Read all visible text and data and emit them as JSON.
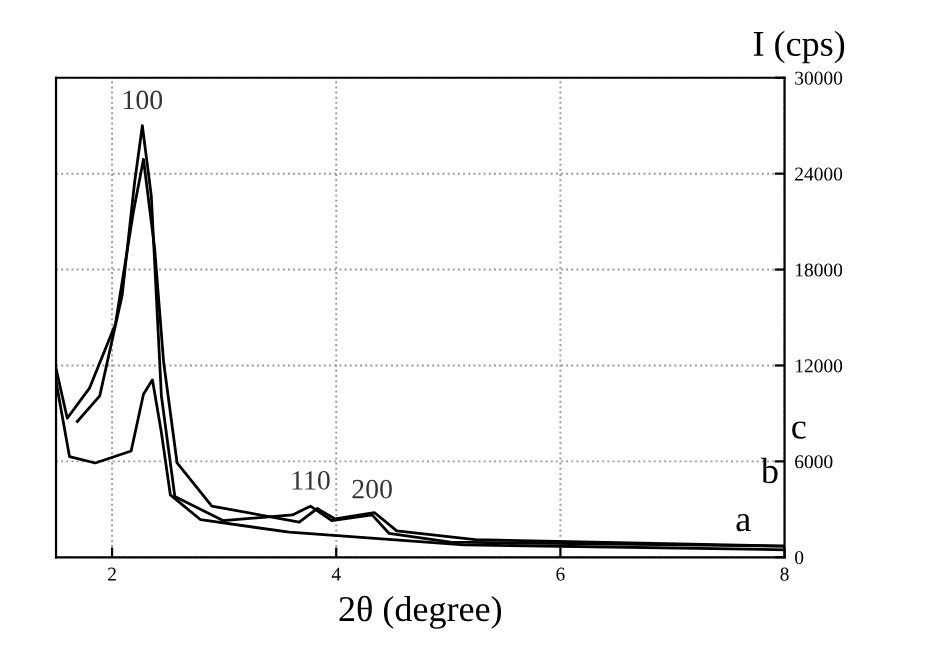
{
  "chart_data": {
    "type": "line",
    "xlabel": "2θ (degree)",
    "ylabel": "I (cps)",
    "xlim": [
      1.5,
      8
    ],
    "xticks": [
      2,
      4,
      6,
      8
    ],
    "ylim": [
      0,
      30000
    ],
    "yticks": [
      0,
      6000,
      12000,
      18000,
      24000,
      30000
    ],
    "grid": true,
    "line_style": "solid",
    "marker": "none",
    "series": [
      {
        "name": "a",
        "color": "#000000",
        "x": [
          1.5,
          1.62,
          1.85,
          2.17,
          2.28,
          2.36,
          2.44,
          2.52,
          2.79,
          3.58,
          5.14,
          8
        ],
        "values": [
          11000,
          6300,
          5900,
          6650,
          10200,
          11100,
          7800,
          3900,
          2350,
          1570,
          780,
          470
        ]
      },
      {
        "name": "b",
        "color": "#000000",
        "x": [
          1.5,
          1.6,
          1.8,
          2.03,
          2.19,
          2.28,
          2.38,
          2.46,
          2.58,
          2.89,
          3.67,
          3.83,
          3.99,
          4.34,
          4.54,
          5.24,
          8
        ],
        "values": [
          11800,
          8700,
          10600,
          14600,
          21600,
          24900,
          19300,
          12200,
          5900,
          3200,
          2200,
          3050,
          2400,
          2800,
          1650,
          1100,
          700
        ]
      },
      {
        "name": "c",
        "color": "#000000",
        "x": [
          1.69,
          1.89,
          2.09,
          2.2,
          2.27,
          2.35,
          2.44,
          2.56,
          2.99,
          3.61,
          3.77,
          3.96,
          4.32,
          4.47,
          5.02,
          8
        ],
        "values": [
          8500,
          10100,
          16400,
          23400,
          27000,
          22600,
          10100,
          3800,
          2300,
          2650,
          3200,
          2300,
          2650,
          1500,
          950,
          700
        ]
      }
    ],
    "annotations": [
      {
        "text": "100",
        "x": 2.27,
        "y": 27000
      },
      {
        "text": "110",
        "x": 3.77,
        "y": 3200
      },
      {
        "text": "200",
        "x": 4.32,
        "y": 2650
      }
    ]
  }
}
